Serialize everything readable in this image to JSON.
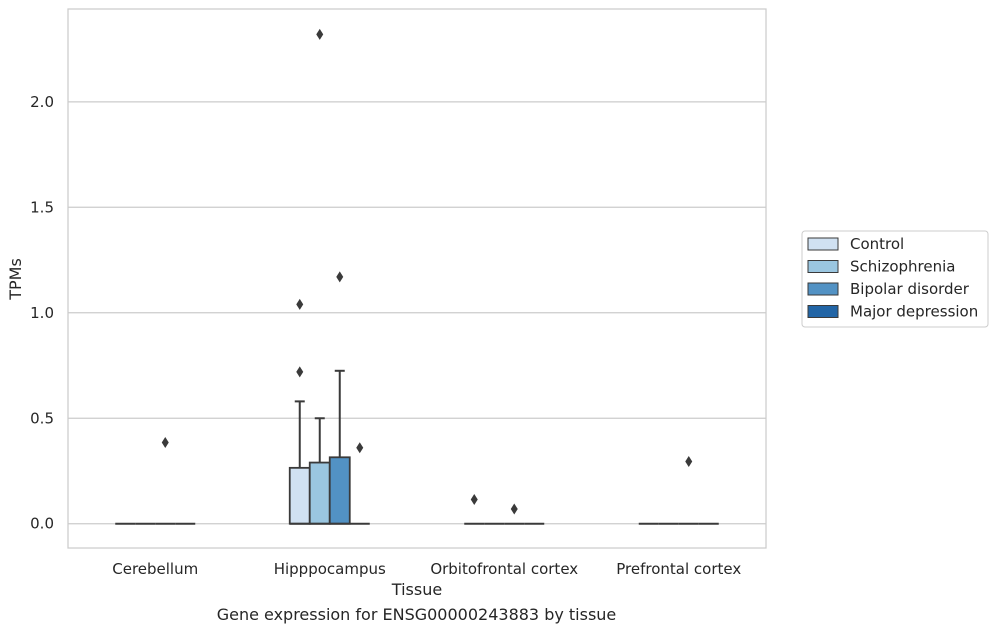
{
  "chart_data": {
    "type": "box",
    "xlabel": "Tissue",
    "ylabel": "TPMs",
    "caption": "Gene expression for ENSG00000243883 by tissue",
    "categories": [
      "Cerebellum",
      "Hipppocampus",
      "Orbitofrontal cortex",
      "Prefrontal cortex"
    ],
    "ylim": [
      -0.115,
      2.44
    ],
    "yticks": [
      0.0,
      0.5,
      1.0,
      1.5,
      2.0
    ],
    "ytick_labels": [
      "0.0",
      "0.5",
      "1.0",
      "1.5",
      "2.0"
    ],
    "grid": "horizontal",
    "legend_position": "right",
    "series": [
      {
        "name": "Control",
        "color": "#d0e1f2",
        "boxes": [
          {
            "q1": 0,
            "median": 0,
            "q3": 0,
            "whisker_low": 0,
            "whisker_high": 0,
            "outliers": []
          },
          {
            "q1": 0,
            "median": 0,
            "q3": 0.265,
            "whisker_low": 0,
            "whisker_high": 0.58,
            "outliers": [
              0.72,
              1.04
            ]
          },
          {
            "q1": 0,
            "median": 0,
            "q3": 0,
            "whisker_low": 0,
            "whisker_high": 0,
            "outliers": [
              0.115
            ]
          },
          {
            "q1": 0,
            "median": 0,
            "q3": 0,
            "whisker_low": 0,
            "whisker_high": 0,
            "outliers": []
          }
        ]
      },
      {
        "name": "Schizophrenia",
        "color": "#9ac6e0",
        "boxes": [
          {
            "q1": 0,
            "median": 0,
            "q3": 0,
            "whisker_low": 0,
            "whisker_high": 0,
            "outliers": []
          },
          {
            "q1": 0,
            "median": 0,
            "q3": 0.29,
            "whisker_low": 0,
            "whisker_high": 0.5,
            "outliers": [
              2.32
            ]
          },
          {
            "q1": 0,
            "median": 0,
            "q3": 0,
            "whisker_low": 0,
            "whisker_high": 0,
            "outliers": []
          },
          {
            "q1": 0,
            "median": 0,
            "q3": 0,
            "whisker_low": 0,
            "whisker_high": 0,
            "outliers": []
          }
        ]
      },
      {
        "name": "Bipolar disorder",
        "color": "#5292c4",
        "boxes": [
          {
            "q1": 0,
            "median": 0,
            "q3": 0,
            "whisker_low": 0,
            "whisker_high": 0,
            "outliers": [
              0.385
            ]
          },
          {
            "q1": 0,
            "median": 0,
            "q3": 0.315,
            "whisker_low": 0,
            "whisker_high": 0.725,
            "outliers": [
              1.17
            ]
          },
          {
            "q1": 0,
            "median": 0,
            "q3": 0,
            "whisker_low": 0,
            "whisker_high": 0,
            "outliers": [
              0.07
            ]
          },
          {
            "q1": 0,
            "median": 0,
            "q3": 0,
            "whisker_low": 0,
            "whisker_high": 0,
            "outliers": [
              0.295
            ]
          }
        ]
      },
      {
        "name": "Major depression",
        "color": "#2265a6",
        "boxes": [
          {
            "q1": 0,
            "median": 0,
            "q3": 0,
            "whisker_low": 0,
            "whisker_high": 0,
            "outliers": []
          },
          {
            "q1": 0,
            "median": 0,
            "q3": 0,
            "whisker_low": 0,
            "whisker_high": 0,
            "outliers": [
              0.36
            ]
          },
          {
            "q1": 0,
            "median": 0,
            "q3": 0,
            "whisker_low": 0,
            "whisker_high": 0,
            "outliers": []
          },
          {
            "q1": 0,
            "median": 0,
            "q3": 0,
            "whisker_low": 0,
            "whisker_high": 0,
            "outliers": []
          }
        ]
      }
    ]
  }
}
